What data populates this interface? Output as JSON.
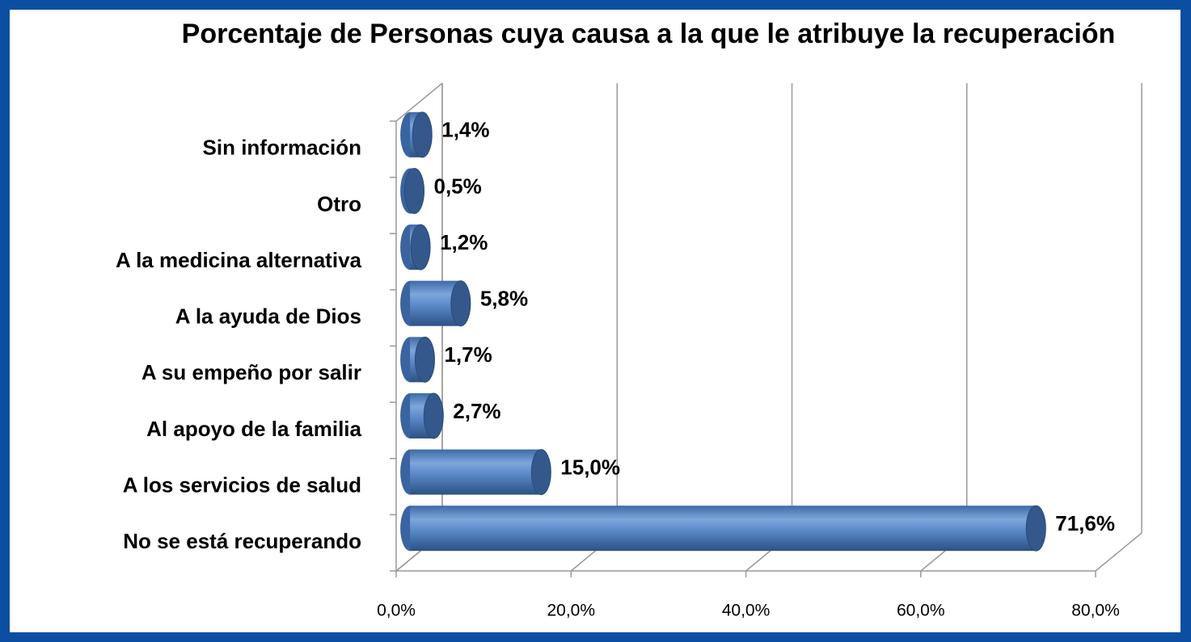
{
  "chart_data": {
    "type": "bar",
    "orientation": "horizontal",
    "title": "Porcentaje de Personas cuya causa a la que le atribuye la recuperación",
    "categories": [
      "Sin información",
      "Otro",
      "A la medicina alternativa",
      "A la ayuda de Dios",
      "A su empeño por salir",
      "Al apoyo de la familia",
      "A los servicios de salud",
      "No se está recuperando"
    ],
    "values": [
      1.4,
      0.5,
      1.2,
      5.8,
      1.7,
      2.7,
      15.0,
      71.6
    ],
    "value_labels": [
      "1,4%",
      "0,5%",
      "1,2%",
      "5,8%",
      "1,7%",
      "2,7%",
      "15,0%",
      "71,6%"
    ],
    "color": "#4f81bd",
    "xlim": [
      0,
      80
    ],
    "xticks": [
      {
        "value": 0,
        "label": "0,0%"
      },
      {
        "value": 20,
        "label": "20,0%"
      },
      {
        "value": 40,
        "label": "40,0%"
      },
      {
        "value": 60,
        "label": "60,0%"
      },
      {
        "value": 80,
        "label": "80,0%"
      }
    ],
    "grid": true
  }
}
